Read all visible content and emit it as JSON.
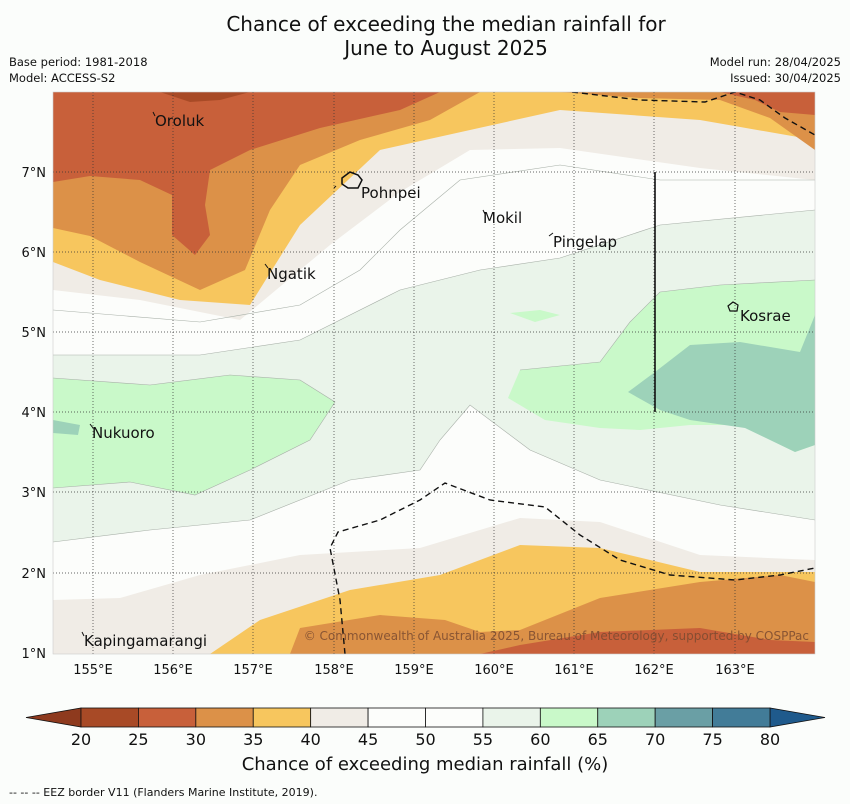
{
  "title_line1": "Chance of exceeding the median rainfall for",
  "title_line2": "June to August 2025",
  "base_period": "Base period: 1981-2018",
  "model": "Model: ACCESS-S2",
  "model_run": "Model run: 28/04/2025",
  "issued": "Issued: 30/04/2025",
  "copyright": "© Commonwealth of Australia 2025, Bureau of Meteorology, supported by COSPPac",
  "colorbar_title": "Chance of exceeding median rainfall (%)",
  "eez_credit": "-- -- -- EEZ border V11 (Flanders Marine Institute, 2019).",
  "lon_ticks": [
    "155°E",
    "156°E",
    "157°E",
    "158°E",
    "159°E",
    "160°E",
    "161°E",
    "162°E",
    "163°E"
  ],
  "lat_ticks": [
    "7°N",
    "6°N",
    "5°N",
    "4°N",
    "3°N",
    "2°N",
    "1°N"
  ],
  "places": [
    "Oroluk",
    "Pohnpei",
    "Mokil",
    "Pingelap",
    "Ngatik",
    "Kosrae",
    "Nukuoro",
    "Kapingamarangi"
  ],
  "colorbar": {
    "ticks": [
      "20",
      "25",
      "30",
      "35",
      "40",
      "45",
      "50",
      "55",
      "60",
      "65",
      "70",
      "75",
      "80"
    ],
    "colors": [
      "#a84a26",
      "#c8603a",
      "#dc9148",
      "#f7c65e",
      "#f0ece6",
      "#fcfdfb",
      "#fcfdfb",
      "#eaf4ea",
      "#c9f9c9",
      "#9dd2b9",
      "#6a9fa5",
      "#427c98"
    ],
    "under_color": "#8e3a1e",
    "over_color": "#1f5a8c"
  }
}
